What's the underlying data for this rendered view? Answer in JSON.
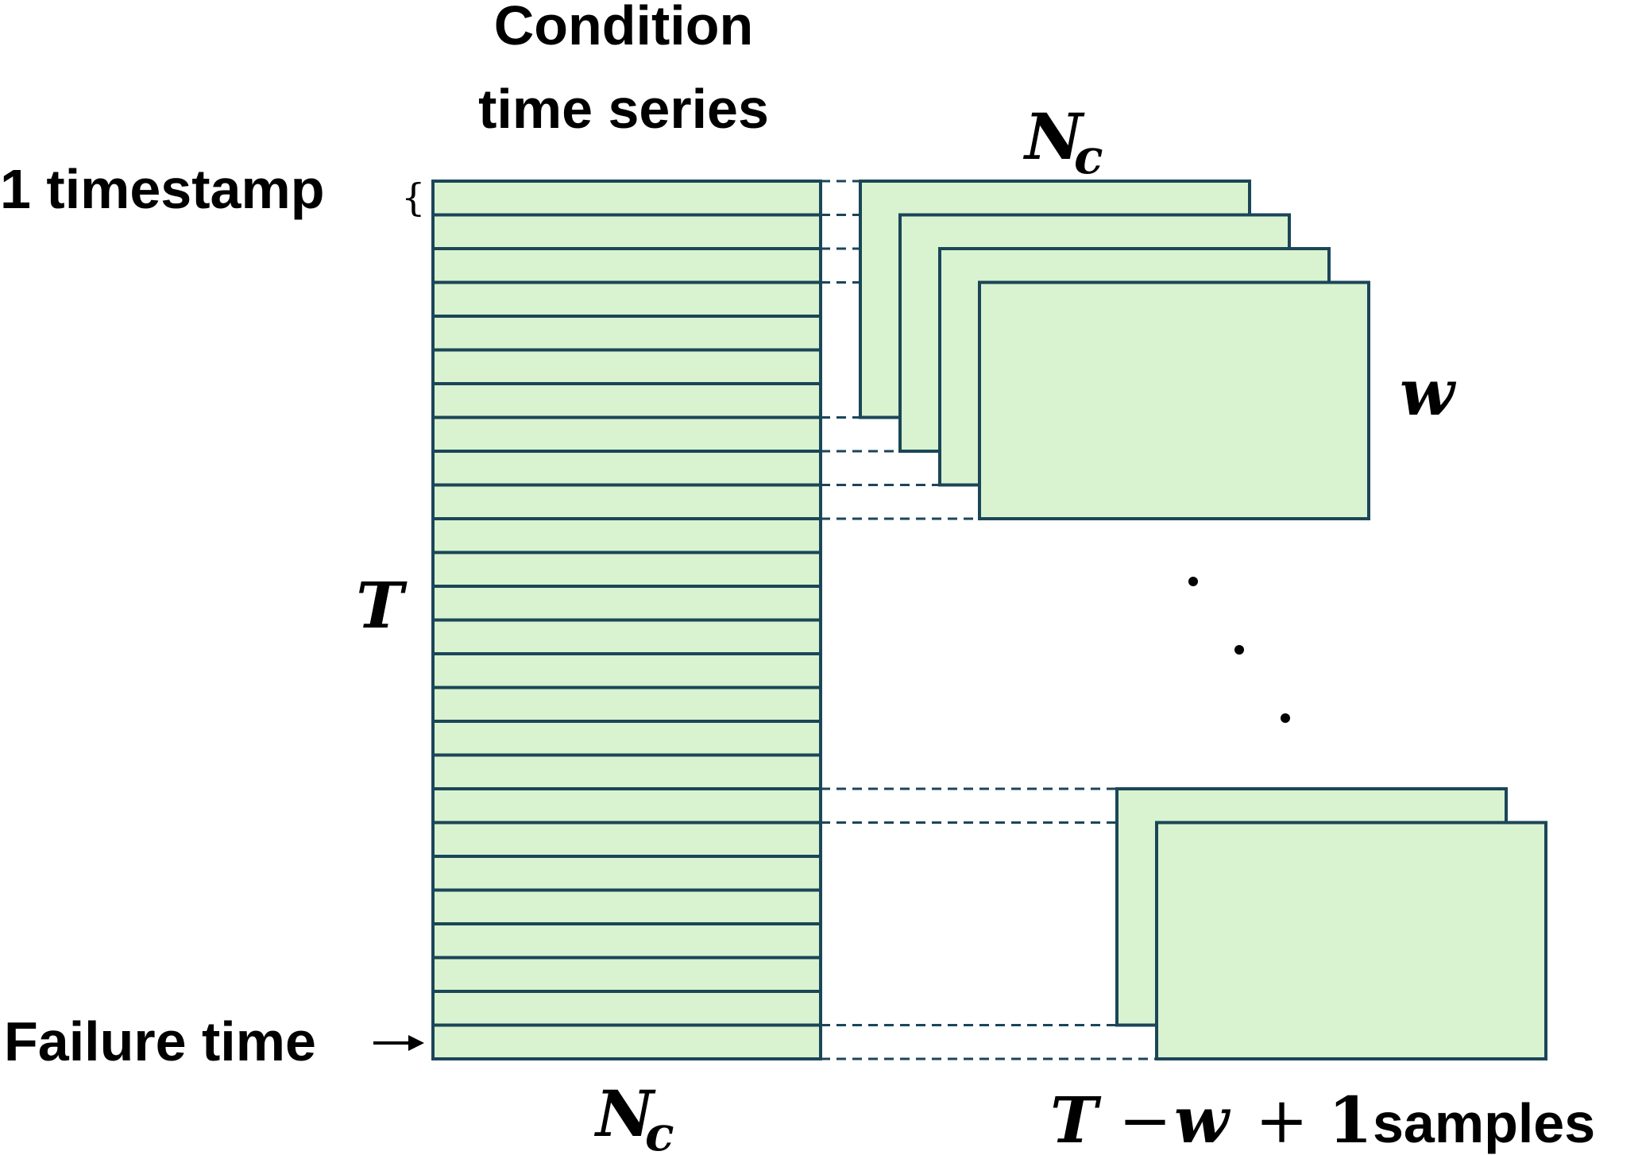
{
  "colors": {
    "fill": "#d9f2d0",
    "stroke": "#1b4658"
  },
  "labels": {
    "title_line1": "Condition",
    "title_line2": "time series",
    "one_timestamp": "1 timestamp",
    "brace": "{",
    "failure_time": "Failure time",
    "T": "T",
    "Nc_base": "N",
    "Nc_sub": "c",
    "w": "w",
    "samples_T": "T",
    "samples_minus": "−",
    "samples_w": "w",
    "samples_plus": "+",
    "samples_one": "1",
    "samples_word": "samples",
    "dot": "."
  },
  "diagram": {
    "row_count": 26,
    "top_window_count": 4,
    "bottom_window_count": 2
  }
}
